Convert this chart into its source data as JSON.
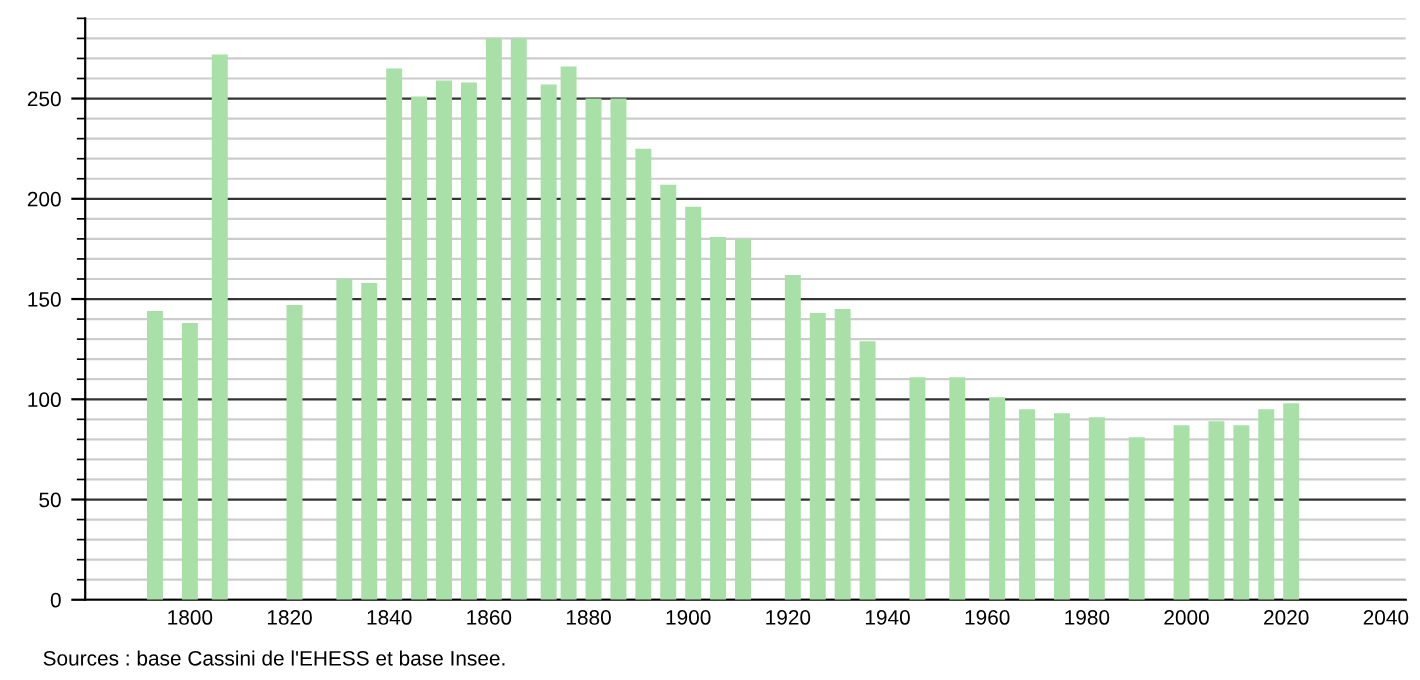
{
  "chart_data": {
    "type": "bar",
    "x": [
      1793,
      1800,
      1806,
      1821,
      1831,
      1836,
      1841,
      1846,
      1851,
      1856,
      1861,
      1866,
      1872,
      1876,
      1881,
      1886,
      1891,
      1896,
      1901,
      1906,
      1911,
      1921,
      1926,
      1931,
      1936,
      1946,
      1954,
      1962,
      1968,
      1975,
      1982,
      1990,
      1999,
      2006,
      2011,
      2016,
      2021
    ],
    "values": [
      144,
      138,
      272,
      147,
      160,
      158,
      265,
      251,
      259,
      258,
      280,
      280,
      257,
      266,
      250,
      250,
      225,
      207,
      196,
      181,
      180,
      162,
      143,
      145,
      129,
      111,
      111,
      101,
      95,
      93,
      91,
      81,
      87,
      89,
      87,
      95,
      98
    ],
    "color": "#a8e0a8",
    "xlim": [
      1779,
      2044
    ],
    "xticks": [
      1800,
      1820,
      1840,
      1860,
      1880,
      1900,
      1920,
      1940,
      1960,
      1980,
      2000,
      2020,
      2040
    ],
    "ylim": [
      0,
      290
    ],
    "yticks": [
      0,
      50,
      100,
      150,
      200,
      250
    ],
    "grid": "y",
    "legend": false,
    "annotations": [
      "Sources : base Cassini de l'EHESS et base Insee."
    ]
  }
}
